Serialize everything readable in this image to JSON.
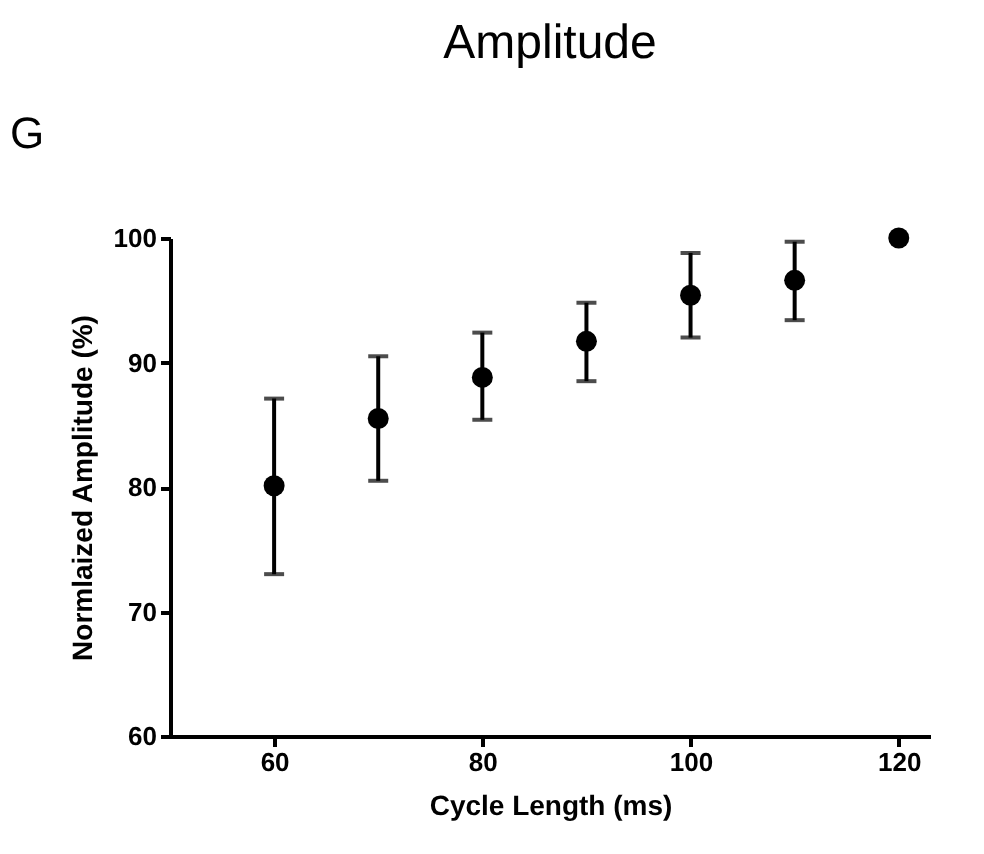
{
  "chart_data": {
    "type": "scatter",
    "title": "Amplitude",
    "xlabel": "Cycle Length (ms)",
    "ylabel": "Normlaized Amplitude (%)",
    "annotations": [
      "G"
    ],
    "x": [
      60,
      70,
      80,
      90,
      100,
      110,
      120
    ],
    "series": [
      {
        "color": "#000000",
        "values": [
          80.1,
          85.5,
          88.8,
          91.7,
          95.4,
          96.6,
          100
        ],
        "errors": [
          [
            73.0,
            87.1
          ],
          [
            80.5,
            90.5
          ],
          [
            85.4,
            92.4
          ],
          [
            88.5,
            94.8
          ],
          [
            92.0,
            98.8
          ],
          [
            93.4,
            99.7
          ],
          null
        ]
      }
    ],
    "xlim": [
      50,
      123
    ],
    "xticks": [
      60,
      80,
      100,
      120
    ],
    "ylim": [
      60,
      100
    ],
    "yticks": [
      60,
      70,
      80,
      90,
      100
    ],
    "marker": "circle",
    "grid": false
  }
}
